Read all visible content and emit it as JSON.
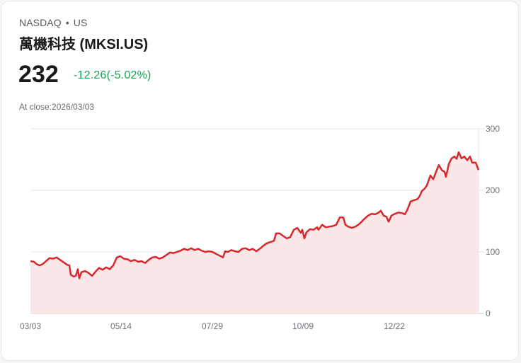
{
  "header": {
    "exchange": "NASDAQ",
    "separator": "•",
    "market": "US",
    "title": "萬機科技 (MKSI.US)",
    "price": "232",
    "change": "-12.26(-5.02%)",
    "close_label": "At close:2026/03/03"
  },
  "colors": {
    "line": "#d8282c",
    "fill": "#fbe7e8",
    "change_text": "#1aa251",
    "grid": "#e4e4e4"
  },
  "chart_data": {
    "type": "area",
    "title": "萬機科技 (MKSI.US)",
    "xlabel": "",
    "ylabel": "",
    "ylim": [
      0,
      300
    ],
    "yticks": [
      0,
      100,
      200,
      300
    ],
    "xtick_labels": [
      "03/03",
      "05/14",
      "07/29",
      "10/09",
      "12/22"
    ],
    "grid": true,
    "legend": null,
    "x": [
      43,
      48,
      52,
      56,
      60,
      65,
      70,
      75,
      80,
      85,
      90,
      95,
      98,
      100,
      104,
      107,
      110,
      112,
      115,
      120,
      125,
      130,
      135,
      140,
      145,
      150,
      155,
      160,
      165,
      170,
      175,
      180,
      185,
      190,
      195,
      200,
      205,
      210,
      215,
      220,
      225,
      230,
      235,
      240,
      245,
      250,
      255,
      260,
      265,
      270,
      275,
      280,
      285,
      290,
      295,
      300,
      305,
      310,
      315,
      318,
      322,
      327,
      332,
      337,
      342,
      347,
      352,
      357,
      362,
      367,
      372,
      377,
      382,
      387,
      390,
      395,
      400,
      405,
      410,
      415,
      420,
      425,
      427,
      430,
      433,
      438,
      443,
      448,
      450,
      455,
      460,
      465,
      470,
      475,
      480,
      485,
      488,
      492,
      497,
      502,
      506,
      510,
      515,
      520,
      525,
      530,
      535,
      538,
      542,
      546,
      549,
      553,
      558,
      563,
      568,
      572,
      576,
      580,
      585,
      590,
      593,
      596,
      600,
      603,
      608,
      612,
      617,
      620,
      624,
      628,
      630,
      634,
      638,
      642,
      645,
      648,
      652,
      656,
      660,
      664,
      667,
      672,
      676
    ],
    "values": [
      85,
      84,
      80,
      78,
      80,
      85,
      90,
      89,
      91,
      87,
      83,
      79,
      78,
      63,
      60,
      61,
      72,
      57,
      67,
      69,
      66,
      61,
      68,
      74,
      71,
      75,
      72,
      78,
      91,
      93,
      89,
      88,
      85,
      87,
      84,
      85,
      82,
      87,
      91,
      92,
      89,
      91,
      95,
      99,
      98,
      100,
      102,
      105,
      103,
      106,
      103,
      105,
      102,
      100,
      101,
      100,
      97,
      94,
      91,
      101,
      100,
      103,
      101,
      100,
      105,
      106,
      103,
      105,
      101,
      105,
      110,
      114,
      116,
      118,
      130,
      130,
      126,
      122,
      124,
      136,
      139,
      131,
      136,
      122,
      132,
      137,
      136,
      140,
      136,
      144,
      140,
      141,
      142,
      144,
      156,
      156,
      144,
      141,
      139,
      141,
      144,
      148,
      154,
      159,
      162,
      161,
      164,
      167,
      159,
      157,
      149,
      159,
      162,
      164,
      163,
      161,
      170,
      182,
      184,
      186,
      191,
      199,
      203,
      208,
      224,
      218,
      233,
      241,
      233,
      230,
      222,
      243,
      252,
      255,
      251,
      262,
      252,
      255,
      249,
      255,
      245,
      245,
      233
    ]
  }
}
